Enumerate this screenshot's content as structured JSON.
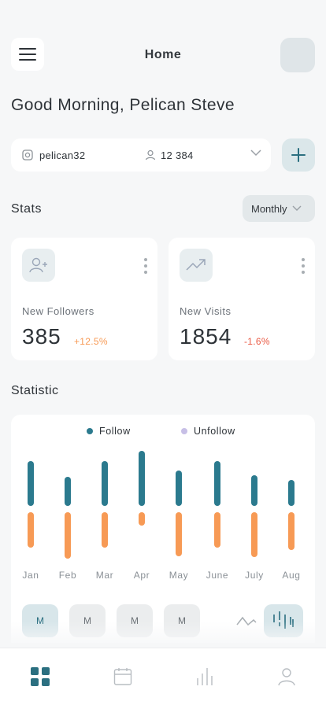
{
  "header": {
    "title": "Home",
    "menu_icon": "hamburger-icon"
  },
  "greeting": "Good Morning, Pelican Steve",
  "account": {
    "handle": "pelican32",
    "handle_icon": "instagram-icon",
    "followers": "12 384",
    "followers_icon": "user-icon"
  },
  "stats": {
    "title": "Stats",
    "period": "Monthly",
    "cards": [
      {
        "label": "New Followers",
        "value": "385",
        "change": "+12.5%",
        "icon": "add-user-icon"
      },
      {
        "label": "New Visits",
        "value": "1854",
        "change": "-1.6%",
        "icon": "trending-up-icon"
      }
    ]
  },
  "statistic": {
    "title": "Statistic",
    "modes": [
      "M",
      "M",
      "M",
      "M"
    ],
    "active_mode": 0
  },
  "colors": {
    "follow": "#2b7a8e",
    "unfollow": "#f79a55",
    "unfollow_legend": "#c7bfe6",
    "accent": "#2b6f80"
  },
  "chart_data": {
    "type": "bar",
    "categories": [
      "Jan",
      "Feb",
      "Mar",
      "Apr",
      "May",
      "June",
      "July",
      "Aug"
    ],
    "series": [
      {
        "name": "Follow",
        "values": [
          57,
          37,
          57,
          70,
          45,
          57,
          39,
          33
        ]
      },
      {
        "name": "Unfollow",
        "values": [
          -45,
          -59,
          -45,
          -17,
          -56,
          -45,
          -57,
          -48
        ]
      }
    ],
    "ylim": [
      -60,
      75
    ],
    "legend": "top",
    "grid": false
  },
  "tabbar": {
    "items": [
      "dashboard-icon",
      "calendar-icon",
      "bar-chart-icon",
      "profile-icon"
    ],
    "active": 0
  }
}
